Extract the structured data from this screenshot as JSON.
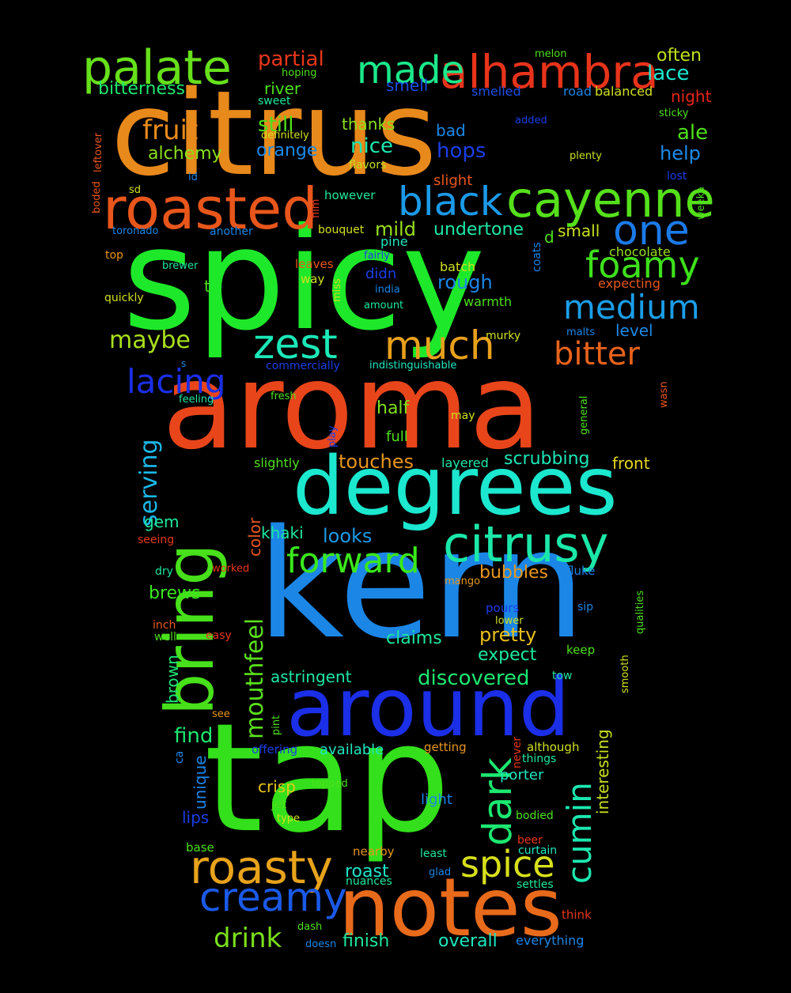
{
  "words": [
    {
      "text": "spicy",
      "color": "#1ee82a"
    },
    {
      "text": "citrus",
      "color": "#e8891b"
    },
    {
      "text": "kern",
      "color": "#1b86e6"
    },
    {
      "text": "aroma",
      "color": "#e8451b"
    },
    {
      "text": "tap",
      "color": "#33e01b"
    },
    {
      "text": "degrees",
      "color": "#1be8cf"
    },
    {
      "text": "around",
      "color": "#1b2ee8"
    },
    {
      "text": "notes",
      "color": "#e86a1b"
    },
    {
      "text": "bring",
      "color": "#47e01b"
    },
    {
      "text": "roasted",
      "color": "#e8561b"
    },
    {
      "text": "cayenne",
      "color": "#55e01b"
    },
    {
      "text": "citrusy",
      "color": "#1be8a8"
    },
    {
      "text": "alhambra",
      "color": "#e8331b"
    },
    {
      "text": "palate",
      "color": "#66e01b"
    },
    {
      "text": "black",
      "color": "#1b9ae8"
    },
    {
      "text": "one",
      "color": "#1b7ae8"
    },
    {
      "text": "made",
      "color": "#1be88a"
    },
    {
      "text": "zest",
      "color": "#1be8b8"
    },
    {
      "text": "much",
      "color": "#e8a01b"
    },
    {
      "text": "roasty",
      "color": "#e8a31b"
    },
    {
      "text": "creamy",
      "color": "#1b5ae8"
    },
    {
      "text": "spice",
      "color": "#d8e01b"
    },
    {
      "text": "foamy",
      "color": "#3ee01b"
    },
    {
      "text": "medium",
      "color": "#1b9ee8"
    },
    {
      "text": "forward",
      "color": "#3ae81b"
    },
    {
      "text": "dark",
      "color": "#1be870"
    },
    {
      "text": "cumin",
      "color": "#1be8b0"
    },
    {
      "text": "bitter",
      "color": "#e8621b"
    },
    {
      "text": "lacing",
      "color": "#1b2ee8"
    },
    {
      "text": "fruit",
      "color": "#e88a1b"
    },
    {
      "text": "mouthfeel",
      "color": "#5ae01b"
    },
    {
      "text": "serving",
      "color": "#1bb8e8"
    },
    {
      "text": "maybe",
      "color": "#a8e01b"
    },
    {
      "text": "drink",
      "color": "#7ae01b"
    },
    {
      "text": "partial",
      "color": "#e8361b"
    },
    {
      "text": "lace",
      "color": "#1be8d0"
    },
    {
      "text": "discovered",
      "color": "#1be870"
    },
    {
      "text": "find",
      "color": "#1be870"
    },
    {
      "text": "hops",
      "color": "#1b3ee8"
    },
    {
      "text": "nice",
      "color": "#1be8b0"
    },
    {
      "text": "ale",
      "color": "#4ee01b"
    },
    {
      "text": "help",
      "color": "#1b8ae8"
    },
    {
      "text": "still",
      "color": "#4ee01b"
    },
    {
      "text": "alchemy",
      "color": "#8ae01b"
    },
    {
      "text": "looks",
      "color": "#1b9ae8"
    },
    {
      "text": "pretty",
      "color": "#e8c01b"
    },
    {
      "text": "expect",
      "color": "#1be8a0"
    },
    {
      "text": "claims",
      "color": "#1be8a0"
    },
    {
      "text": "scrubbing",
      "color": "#1be8b8"
    },
    {
      "text": "touches",
      "color": "#e8961b"
    },
    {
      "text": "khaki",
      "color": "#1be8a0"
    },
    {
      "text": "rough",
      "color": "#1b86e8"
    },
    {
      "text": "mild",
      "color": "#9ae01b"
    },
    {
      "text": "crisp",
      "color": "#e8c81b"
    },
    {
      "text": "overall",
      "color": "#1be8c0"
    },
    {
      "text": "finish",
      "color": "#1be8a0"
    },
    {
      "text": "bitterness",
      "color": "#1be870"
    },
    {
      "text": "often",
      "color": "#c0e01b"
    },
    {
      "text": "orange",
      "color": "#1b8ae8"
    },
    {
      "text": "small",
      "color": "#c8e01b"
    },
    {
      "text": "undertone",
      "color": "#1be8a8"
    },
    {
      "text": "astringent",
      "color": "#1be8a8"
    },
    {
      "text": "brews",
      "color": "#3ae81b"
    },
    {
      "text": "interesting",
      "color": "#c8e01b"
    },
    {
      "text": "bubbles",
      "color": "#e8961b"
    },
    {
      "text": "roast",
      "color": "#1be8c8"
    },
    {
      "text": "half",
      "color": "#80e01b"
    },
    {
      "text": "thanks",
      "color": "#8ae01b"
    },
    {
      "text": "smell",
      "color": "#1b4ee8"
    },
    {
      "text": "bad",
      "color": "#1b8ae8"
    },
    {
      "text": "river",
      "color": "#4ee01b"
    },
    {
      "text": "level",
      "color": "#1b8ae8"
    },
    {
      "text": "night",
      "color": "#e8241b"
    },
    {
      "text": "lips",
      "color": "#1b3ee8"
    },
    {
      "text": "gem",
      "color": "#1be8a0"
    },
    {
      "text": "brown",
      "color": "#1be878"
    },
    {
      "text": "color",
      "color": "#e8561b"
    },
    {
      "text": "front",
      "color": "#e8d81b"
    },
    {
      "text": "unique",
      "color": "#1b86e8"
    },
    {
      "text": "porter",
      "color": "#1be8c0"
    },
    {
      "text": "light",
      "color": "#1b86e8"
    },
    {
      "text": "available",
      "color": "#1be8c0"
    },
    {
      "text": "full",
      "color": "#4ee01b"
    },
    {
      "text": "slightly",
      "color": "#4ee01b"
    },
    {
      "text": "layered",
      "color": "#1be8a8"
    },
    {
      "text": "slight",
      "color": "#e8561b"
    },
    {
      "text": "smelled",
      "color": "#1b4ee8"
    },
    {
      "text": "balanced",
      "color": "#d0e01b"
    },
    {
      "text": "road",
      "color": "#1b86e8"
    },
    {
      "text": "chocolate",
      "color": "#9ae01b"
    },
    {
      "text": "expecting",
      "color": "#e8561b"
    },
    {
      "text": "warmth",
      "color": "#4ee01b"
    },
    {
      "text": "coats",
      "color": "#1b86e8"
    },
    {
      "text": "batch",
      "color": "#d0e01b"
    },
    {
      "text": "pine",
      "color": "#1be8c0"
    },
    {
      "text": "didn",
      "color": "#1b3ee8"
    },
    {
      "text": "d",
      "color": "#4ee01b"
    },
    {
      "text": "t",
      "color": "#4ee01b"
    },
    {
      "text": "sweet",
      "color": "#1be8a0"
    },
    {
      "text": "definitely",
      "color": "#d0e01b"
    },
    {
      "text": "flavors",
      "color": "#c0e01b"
    },
    {
      "text": "hoping",
      "color": "#4ee01b"
    },
    {
      "text": "melon",
      "color": "#4ee01b"
    },
    {
      "text": "added",
      "color": "#1b3ee8"
    },
    {
      "text": "sticky",
      "color": "#4ee01b"
    },
    {
      "text": "plenty",
      "color": "#c8e01b"
    },
    {
      "text": "lost",
      "color": "#1b3ee8"
    },
    {
      "text": "weeka",
      "color": "#4ee01b"
    },
    {
      "text": "leftover",
      "color": "#e8561b"
    },
    {
      "text": "boded",
      "color": "#e8561b"
    },
    {
      "text": "id",
      "color": "#1b86e8"
    },
    {
      "text": "sd",
      "color": "#d0e01b"
    },
    {
      "text": "toronado",
      "color": "#1b86e8"
    },
    {
      "text": "another",
      "color": "#1b86e8"
    },
    {
      "text": "however",
      "color": "#1be8a0"
    },
    {
      "text": "film",
      "color": "#e8361b"
    },
    {
      "text": "bouquet",
      "color": "#d0e01b"
    },
    {
      "text": "top",
      "color": "#e8961b"
    },
    {
      "text": "brewer",
      "color": "#1be8a0"
    },
    {
      "text": "leaves",
      "color": "#e8561b"
    },
    {
      "text": "fairly",
      "color": "#1b3ee8"
    },
    {
      "text": "way",
      "color": "#d0e01b"
    },
    {
      "text": "miss",
      "color": "#d0e01b"
    },
    {
      "text": "india",
      "color": "#1b86e8"
    },
    {
      "text": "amount",
      "color": "#1be8a0"
    },
    {
      "text": "quickly",
      "color": "#d0e01b"
    },
    {
      "text": "malts",
      "color": "#1b86e8"
    },
    {
      "text": "murky",
      "color": "#d0e01b"
    },
    {
      "text": "s",
      "color": "#1b86e8"
    },
    {
      "text": "commercially",
      "color": "#1b3ee8"
    },
    {
      "text": "indistinguishable",
      "color": "#1be8c0"
    },
    {
      "text": "general",
      "color": "#4ee01b"
    },
    {
      "text": "wasn",
      "color": "#e8561b"
    },
    {
      "text": "fresh",
      "color": "#4ee01b"
    },
    {
      "text": "feeling",
      "color": "#1be8a0"
    },
    {
      "text": "play",
      "color": "#1b3ee8"
    },
    {
      "text": "may",
      "color": "#d0e01b"
    },
    {
      "text": "seeing",
      "color": "#e8361b"
    },
    {
      "text": "dry",
      "color": "#1be8a0"
    },
    {
      "text": "worked",
      "color": "#e8361b"
    },
    {
      "text": "mango",
      "color": "#e8961b"
    },
    {
      "text": "fluke",
      "color": "#1b86e8"
    },
    {
      "text": "qualities",
      "color": "#4ee01b"
    },
    {
      "text": "inch",
      "color": "#e8561b"
    },
    {
      "text": "well",
      "color": "#4ee01b"
    },
    {
      "text": "easy",
      "color": "#e8361b"
    },
    {
      "text": "pours",
      "color": "#1b3ee8"
    },
    {
      "text": "lower",
      "color": "#d0e01b"
    },
    {
      "text": "sip",
      "color": "#1b86e8"
    },
    {
      "text": "keep",
      "color": "#4ee01b"
    },
    {
      "text": "smooth",
      "color": "#d0e01b"
    },
    {
      "text": "tow",
      "color": "#1be8a0"
    },
    {
      "text": "see",
      "color": "#e8961b"
    },
    {
      "text": "pint",
      "color": "#4ee01b"
    },
    {
      "text": "ca",
      "color": "#1b86e8"
    },
    {
      "text": "offering",
      "color": "#1b3ee8"
    },
    {
      "text": "getting",
      "color": "#e8961b"
    },
    {
      "text": "never",
      "color": "#e8361b"
    },
    {
      "text": "although",
      "color": "#d0e01b"
    },
    {
      "text": "things",
      "color": "#1be8a0"
    },
    {
      "text": "topped",
      "color": "#4ee01b"
    },
    {
      "text": "jet",
      "color": "#4ee01b"
    },
    {
      "text": "type",
      "color": "#d0e01b"
    },
    {
      "text": "bodied",
      "color": "#4ee01b"
    },
    {
      "text": "beer",
      "color": "#e8361b"
    },
    {
      "text": "base",
      "color": "#4ee01b"
    },
    {
      "text": "nearby",
      "color": "#e8961b"
    },
    {
      "text": "least",
      "color": "#1be8a0"
    },
    {
      "text": "curtain",
      "color": "#1be8c0"
    },
    {
      "text": "glad",
      "color": "#1b86e8"
    },
    {
      "text": "nuances",
      "color": "#1be8a0"
    },
    {
      "text": "settles",
      "color": "#1be8a0"
    },
    {
      "text": "think",
      "color": "#e8361b"
    },
    {
      "text": "dash",
      "color": "#4ee01b"
    },
    {
      "text": "doesn",
      "color": "#1b86e8"
    },
    {
      "text": "everything",
      "color": "#1b86e8"
    }
  ]
}
